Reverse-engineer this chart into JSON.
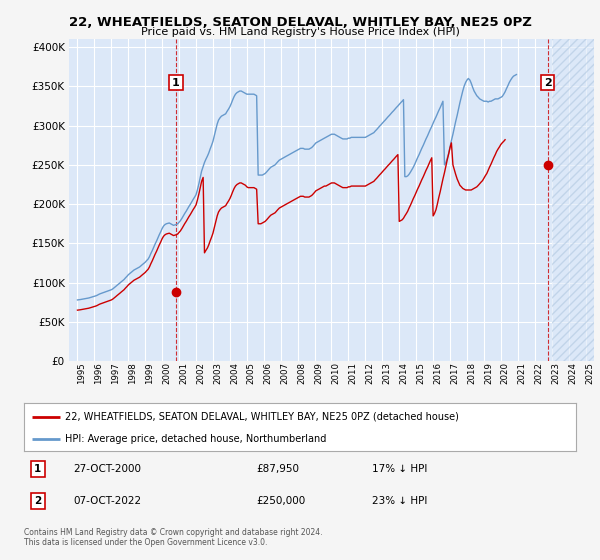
{
  "title": "22, WHEATFIELDS, SEATON DELAVAL, WHITLEY BAY, NE25 0PZ",
  "subtitle": "Price paid vs. HM Land Registry's House Price Index (HPI)",
  "legend_line1": "22, WHEATFIELDS, SEATON DELAVAL, WHITLEY BAY, NE25 0PZ (detached house)",
  "legend_line2": "HPI: Average price, detached house, Northumberland",
  "annotation1_label": "1",
  "annotation1_date": "27-OCT-2000",
  "annotation1_price": "£87,950",
  "annotation1_hpi": "17% ↓ HPI",
  "annotation2_label": "2",
  "annotation2_date": "07-OCT-2022",
  "annotation2_price": "£250,000",
  "annotation2_hpi": "23% ↓ HPI",
  "footnote": "Contains HM Land Registry data © Crown copyright and database right 2024.\nThis data is licensed under the Open Government Licence v3.0.",
  "background_color": "#f5f5f5",
  "plot_bg_color": "#dce8f8",
  "red_color": "#cc0000",
  "blue_color": "#6699cc",
  "hatch_color": "#c8d8ee",
  "grid_color": "#ffffff",
  "ylim": [
    0,
    410000
  ],
  "yticks": [
    0,
    50000,
    100000,
    150000,
    200000,
    250000,
    300000,
    350000,
    400000
  ],
  "sale1_year": 2000.82,
  "sale1_price": 87950,
  "sale2_year": 2022.77,
  "sale2_price": 250000,
  "hatch_start": 2023.0,
  "xlim_left": 1994.5,
  "xlim_right": 2025.5,
  "hpi_years": [
    1995.0,
    1995.08,
    1995.17,
    1995.25,
    1995.33,
    1995.42,
    1995.5,
    1995.58,
    1995.67,
    1995.75,
    1995.83,
    1995.92,
    1996.0,
    1996.08,
    1996.17,
    1996.25,
    1996.33,
    1996.42,
    1996.5,
    1996.58,
    1996.67,
    1996.75,
    1996.83,
    1996.92,
    1997.0,
    1997.08,
    1997.17,
    1997.25,
    1997.33,
    1997.42,
    1997.5,
    1997.58,
    1997.67,
    1997.75,
    1997.83,
    1997.92,
    1998.0,
    1998.08,
    1998.17,
    1998.25,
    1998.33,
    1998.42,
    1998.5,
    1998.58,
    1998.67,
    1998.75,
    1998.83,
    1998.92,
    1999.0,
    1999.08,
    1999.17,
    1999.25,
    1999.33,
    1999.42,
    1999.5,
    1999.58,
    1999.67,
    1999.75,
    1999.83,
    1999.92,
    2000.0,
    2000.08,
    2000.17,
    2000.25,
    2000.33,
    2000.42,
    2000.5,
    2000.58,
    2000.67,
    2000.75,
    2000.83,
    2000.92,
    2001.0,
    2001.08,
    2001.17,
    2001.25,
    2001.33,
    2001.42,
    2001.5,
    2001.58,
    2001.67,
    2001.75,
    2001.83,
    2001.92,
    2002.0,
    2002.08,
    2002.17,
    2002.25,
    2002.33,
    2002.42,
    2002.5,
    2002.58,
    2002.67,
    2002.75,
    2002.83,
    2002.92,
    2003.0,
    2003.08,
    2003.17,
    2003.25,
    2003.33,
    2003.42,
    2003.5,
    2003.58,
    2003.67,
    2003.75,
    2003.83,
    2003.92,
    2004.0,
    2004.08,
    2004.17,
    2004.25,
    2004.33,
    2004.42,
    2004.5,
    2004.58,
    2004.67,
    2004.75,
    2004.83,
    2004.92,
    2005.0,
    2005.08,
    2005.17,
    2005.25,
    2005.33,
    2005.42,
    2005.5,
    2005.58,
    2005.67,
    2005.75,
    2005.83,
    2005.92,
    2006.0,
    2006.08,
    2006.17,
    2006.25,
    2006.33,
    2006.42,
    2006.5,
    2006.58,
    2006.67,
    2006.75,
    2006.83,
    2006.92,
    2007.0,
    2007.08,
    2007.17,
    2007.25,
    2007.33,
    2007.42,
    2007.5,
    2007.58,
    2007.67,
    2007.75,
    2007.83,
    2007.92,
    2008.0,
    2008.08,
    2008.17,
    2008.25,
    2008.33,
    2008.42,
    2008.5,
    2008.58,
    2008.67,
    2008.75,
    2008.83,
    2008.92,
    2009.0,
    2009.08,
    2009.17,
    2009.25,
    2009.33,
    2009.42,
    2009.5,
    2009.58,
    2009.67,
    2009.75,
    2009.83,
    2009.92,
    2010.0,
    2010.08,
    2010.17,
    2010.25,
    2010.33,
    2010.42,
    2010.5,
    2010.58,
    2010.67,
    2010.75,
    2010.83,
    2010.92,
    2011.0,
    2011.08,
    2011.17,
    2011.25,
    2011.33,
    2011.42,
    2011.5,
    2011.58,
    2011.67,
    2011.75,
    2011.83,
    2011.92,
    2012.0,
    2012.08,
    2012.17,
    2012.25,
    2012.33,
    2012.42,
    2012.5,
    2012.58,
    2012.67,
    2012.75,
    2012.83,
    2012.92,
    2013.0,
    2013.08,
    2013.17,
    2013.25,
    2013.33,
    2013.42,
    2013.5,
    2013.58,
    2013.67,
    2013.75,
    2013.83,
    2013.92,
    2014.0,
    2014.08,
    2014.17,
    2014.25,
    2014.33,
    2014.42,
    2014.5,
    2014.58,
    2014.67,
    2014.75,
    2014.83,
    2014.92,
    2015.0,
    2015.08,
    2015.17,
    2015.25,
    2015.33,
    2015.42,
    2015.5,
    2015.58,
    2015.67,
    2015.75,
    2015.83,
    2015.92,
    2016.0,
    2016.08,
    2016.17,
    2016.25,
    2016.33,
    2016.42,
    2016.5,
    2016.58,
    2016.67,
    2016.75,
    2016.83,
    2016.92,
    2017.0,
    2017.08,
    2017.17,
    2017.25,
    2017.33,
    2017.42,
    2017.5,
    2017.58,
    2017.67,
    2017.75,
    2017.83,
    2017.92,
    2018.0,
    2018.08,
    2018.17,
    2018.25,
    2018.33,
    2018.42,
    2018.5,
    2018.58,
    2018.67,
    2018.75,
    2018.83,
    2018.92,
    2019.0,
    2019.08,
    2019.17,
    2019.25,
    2019.33,
    2019.42,
    2019.5,
    2019.58,
    2019.67,
    2019.75,
    2019.83,
    2019.92,
    2020.0,
    2020.08,
    2020.17,
    2020.25,
    2020.33,
    2020.42,
    2020.5,
    2020.58,
    2020.67,
    2020.75,
    2020.83,
    2020.92,
    2021.0,
    2021.08,
    2021.17,
    2021.25,
    2021.33,
    2021.42,
    2021.5,
    2021.58,
    2021.67,
    2021.75,
    2021.83,
    2021.92,
    2022.0,
    2022.08,
    2022.17,
    2022.25,
    2022.33,
    2022.42,
    2022.5,
    2022.58,
    2022.67,
    2022.75,
    2022.83,
    2022.92,
    2023.0,
    2023.08,
    2023.17,
    2023.25,
    2023.33,
    2023.42,
    2023.5,
    2023.58,
    2023.67,
    2023.75,
    2023.83,
    2023.92,
    2024.0,
    2024.08,
    2024.17,
    2024.25
  ],
  "hpi_values": [
    78000,
    78200,
    78500,
    78800,
    79100,
    79400,
    79700,
    80100,
    80500,
    81000,
    81500,
    82000,
    82500,
    83200,
    84000,
    85000,
    85800,
    86500,
    87200,
    87800,
    88300,
    89000,
    89800,
    90500,
    91000,
    92000,
    93500,
    95000,
    96500,
    98000,
    99500,
    101000,
    102500,
    104000,
    106000,
    108000,
    110000,
    111500,
    113000,
    114500,
    116000,
    117000,
    118000,
    119000,
    120000,
    121500,
    123000,
    124500,
    126000,
    128000,
    130000,
    133000,
    137000,
    141000,
    145000,
    149000,
    153000,
    157000,
    161000,
    165000,
    169000,
    172000,
    174000,
    175000,
    175500,
    176000,
    175000,
    174000,
    173000,
    173500,
    174000,
    175000,
    177000,
    179000,
    182000,
    185000,
    188000,
    191000,
    194000,
    197000,
    200000,
    203000,
    206000,
    209000,
    212000,
    218000,
    226000,
    234000,
    242000,
    248000,
    253000,
    257000,
    261000,
    265000,
    270000,
    275000,
    280000,
    287000,
    295000,
    302000,
    307000,
    310000,
    312000,
    313000,
    314000,
    315000,
    318000,
    321000,
    324000,
    328000,
    333000,
    337000,
    340000,
    342000,
    343000,
    344000,
    344000,
    343000,
    342000,
    341000,
    340000,
    340000,
    340000,
    340000,
    340000,
    340000,
    339000,
    338000,
    237000,
    237000,
    237000,
    237000,
    238000,
    239000,
    241000,
    243000,
    245000,
    247000,
    248000,
    249000,
    250000,
    252000,
    254000,
    256000,
    257000,
    258000,
    259000,
    260000,
    261000,
    262000,
    263000,
    264000,
    265000,
    266000,
    267000,
    268000,
    269000,
    270000,
    271000,
    271000,
    271000,
    270000,
    270000,
    270000,
    270000,
    271000,
    272000,
    274000,
    276000,
    278000,
    279000,
    280000,
    281000,
    282000,
    283000,
    284000,
    285000,
    286000,
    287000,
    288000,
    289000,
    289000,
    289000,
    288000,
    287000,
    286000,
    285000,
    284000,
    283000,
    283000,
    283000,
    283000,
    284000,
    284000,
    285000,
    285000,
    285000,
    285000,
    285000,
    285000,
    285000,
    285000,
    285000,
    285000,
    285000,
    286000,
    287000,
    288000,
    289000,
    290000,
    291000,
    293000,
    295000,
    297000,
    299000,
    301000,
    303000,
    305000,
    307000,
    309000,
    311000,
    313000,
    315000,
    317000,
    319000,
    321000,
    323000,
    325000,
    327000,
    329000,
    331000,
    333000,
    235000,
    235000,
    236000,
    238000,
    241000,
    244000,
    247000,
    251000,
    255000,
    259000,
    263000,
    267000,
    271000,
    275000,
    279000,
    283000,
    287000,
    291000,
    295000,
    299000,
    303000,
    307000,
    311000,
    315000,
    319000,
    323000,
    327000,
    331000,
    250000,
    253000,
    258000,
    265000,
    273000,
    281000,
    289000,
    297000,
    305000,
    313000,
    321000,
    329000,
    337000,
    344000,
    350000,
    355000,
    358000,
    360000,
    358000,
    354000,
    349000,
    344000,
    341000,
    338000,
    336000,
    334000,
    333000,
    332000,
    331000,
    331000,
    331000,
    330000,
    331000,
    331000,
    332000,
    333000,
    334000,
    334000,
    334000,
    335000,
    336000,
    337000,
    340000,
    343000,
    347000,
    351000,
    355000,
    358000,
    361000,
    363000,
    364000,
    365000
  ],
  "red_years": [
    1995.0,
    1995.08,
    1995.17,
    1995.25,
    1995.33,
    1995.42,
    1995.5,
    1995.58,
    1995.67,
    1995.75,
    1995.83,
    1995.92,
    1996.0,
    1996.08,
    1996.17,
    1996.25,
    1996.33,
    1996.42,
    1996.5,
    1996.58,
    1996.67,
    1996.75,
    1996.83,
    1996.92,
    1997.0,
    1997.08,
    1997.17,
    1997.25,
    1997.33,
    1997.42,
    1997.5,
    1997.58,
    1997.67,
    1997.75,
    1997.83,
    1997.92,
    1998.0,
    1998.08,
    1998.17,
    1998.25,
    1998.33,
    1998.42,
    1998.5,
    1998.58,
    1998.67,
    1998.75,
    1998.83,
    1998.92,
    1999.0,
    1999.08,
    1999.17,
    1999.25,
    1999.33,
    1999.42,
    1999.5,
    1999.58,
    1999.67,
    1999.75,
    1999.83,
    1999.92,
    2000.0,
    2000.08,
    2000.17,
    2000.25,
    2000.33,
    2000.42,
    2000.5,
    2000.58,
    2000.67,
    2000.75,
    2000.83,
    2000.92,
    2001.0,
    2001.08,
    2001.17,
    2001.25,
    2001.33,
    2001.42,
    2001.5,
    2001.58,
    2001.67,
    2001.75,
    2001.83,
    2001.92,
    2002.0,
    2002.08,
    2002.17,
    2002.25,
    2002.33,
    2002.42,
    2002.5,
    2002.58,
    2002.67,
    2002.75,
    2002.83,
    2002.92,
    2003.0,
    2003.08,
    2003.17,
    2003.25,
    2003.33,
    2003.42,
    2003.5,
    2003.58,
    2003.67,
    2003.75,
    2003.83,
    2003.92,
    2004.0,
    2004.08,
    2004.17,
    2004.25,
    2004.33,
    2004.42,
    2004.5,
    2004.58,
    2004.67,
    2004.75,
    2004.83,
    2004.92,
    2005.0,
    2005.08,
    2005.17,
    2005.25,
    2005.33,
    2005.42,
    2005.5,
    2005.58,
    2005.67,
    2005.75,
    2005.83,
    2005.92,
    2006.0,
    2006.08,
    2006.17,
    2006.25,
    2006.33,
    2006.42,
    2006.5,
    2006.58,
    2006.67,
    2006.75,
    2006.83,
    2006.92,
    2007.0,
    2007.08,
    2007.17,
    2007.25,
    2007.33,
    2007.42,
    2007.5,
    2007.58,
    2007.67,
    2007.75,
    2007.83,
    2007.92,
    2008.0,
    2008.08,
    2008.17,
    2008.25,
    2008.33,
    2008.42,
    2008.5,
    2008.58,
    2008.67,
    2008.75,
    2008.83,
    2008.92,
    2009.0,
    2009.08,
    2009.17,
    2009.25,
    2009.33,
    2009.42,
    2009.5,
    2009.58,
    2009.67,
    2009.75,
    2009.83,
    2009.92,
    2010.0,
    2010.08,
    2010.17,
    2010.25,
    2010.33,
    2010.42,
    2010.5,
    2010.58,
    2010.67,
    2010.75,
    2010.83,
    2010.92,
    2011.0,
    2011.08,
    2011.17,
    2011.25,
    2011.33,
    2011.42,
    2011.5,
    2011.58,
    2011.67,
    2011.75,
    2011.83,
    2011.92,
    2012.0,
    2012.08,
    2012.17,
    2012.25,
    2012.33,
    2012.42,
    2012.5,
    2012.58,
    2012.67,
    2012.75,
    2012.83,
    2012.92,
    2013.0,
    2013.08,
    2013.17,
    2013.25,
    2013.33,
    2013.42,
    2013.5,
    2013.58,
    2013.67,
    2013.75,
    2013.83,
    2013.92,
    2014.0,
    2014.08,
    2014.17,
    2014.25,
    2014.33,
    2014.42,
    2014.5,
    2014.58,
    2014.67,
    2014.75,
    2014.83,
    2014.92,
    2015.0,
    2015.08,
    2015.17,
    2015.25,
    2015.33,
    2015.42,
    2015.5,
    2015.58,
    2015.67,
    2015.75,
    2015.83,
    2015.92,
    2016.0,
    2016.08,
    2016.17,
    2016.25,
    2016.33,
    2016.42,
    2016.5,
    2016.58,
    2016.67,
    2016.75,
    2016.83,
    2016.92,
    2017.0,
    2017.08,
    2017.17,
    2017.25,
    2017.33,
    2017.42,
    2017.5,
    2017.58,
    2017.67,
    2017.75,
    2017.83,
    2017.92,
    2018.0,
    2018.08,
    2018.17,
    2018.25,
    2018.33,
    2018.42,
    2018.5,
    2018.58,
    2018.67,
    2018.75,
    2018.83,
    2018.92,
    2019.0,
    2019.08,
    2019.17,
    2019.25,
    2019.33,
    2019.42,
    2019.5,
    2019.58,
    2019.67,
    2019.75,
    2019.83,
    2019.92,
    2020.0,
    2020.08,
    2020.17,
    2020.25,
    2020.33,
    2020.42,
    2020.5,
    2020.58,
    2020.67,
    2020.75,
    2020.83,
    2020.92,
    2021.0,
    2021.08,
    2021.17,
    2021.25,
    2021.33,
    2021.42,
    2021.5,
    2021.58,
    2021.67,
    2021.75,
    2021.83,
    2021.92,
    2022.0,
    2022.08,
    2022.17,
    2022.25,
    2022.33,
    2022.42,
    2022.5,
    2022.58,
    2022.67,
    2022.75,
    2022.83,
    2022.92,
    2023.0,
    2023.08,
    2023.17,
    2023.25,
    2023.33,
    2023.42,
    2023.5,
    2023.58,
    2023.67,
    2023.75,
    2023.83,
    2023.92,
    2024.0,
    2024.08,
    2024.17,
    2024.25
  ],
  "red_values": [
    65000,
    65200,
    65500,
    65800,
    66100,
    66400,
    66700,
    67100,
    67500,
    68000,
    68500,
    69000,
    69500,
    70200,
    71000,
    72000,
    72800,
    73500,
    74200,
    74800,
    75300,
    76000,
    76800,
    77500,
    78000,
    79000,
    80500,
    82000,
    83500,
    85000,
    86500,
    88000,
    89500,
    91000,
    93000,
    95000,
    97000,
    98500,
    100000,
    101500,
    103000,
    104000,
    105000,
    106000,
    107000,
    108500,
    110000,
    111500,
    113000,
    115000,
    117000,
    120000,
    124000,
    128000,
    132000,
    136000,
    140000,
    144000,
    148000,
    152000,
    156000,
    159000,
    161000,
    162000,
    162500,
    163000,
    162000,
    161000,
    160000,
    160500,
    161000,
    162000,
    164000,
    166000,
    169000,
    172000,
    175000,
    178000,
    181000,
    184000,
    187000,
    190000,
    193000,
    196000,
    199000,
    205000,
    213000,
    221000,
    229000,
    234000,
    138000,
    141000,
    144000,
    148000,
    153000,
    158000,
    163000,
    170000,
    178000,
    185000,
    190000,
    193000,
    195000,
    196000,
    197000,
    198000,
    201000,
    204000,
    207000,
    211000,
    216000,
    220000,
    223000,
    225000,
    226000,
    227000,
    227000,
    226000,
    225000,
    224000,
    222000,
    221000,
    221000,
    221000,
    221000,
    221000,
    220000,
    219000,
    175000,
    175000,
    175000,
    176000,
    177000,
    178000,
    180000,
    182000,
    184000,
    186000,
    187000,
    188000,
    189000,
    191000,
    193000,
    195000,
    196000,
    197000,
    198000,
    199000,
    200000,
    201000,
    202000,
    203000,
    204000,
    205000,
    206000,
    207000,
    208000,
    209000,
    210000,
    210000,
    210000,
    209000,
    209000,
    209000,
    209000,
    210000,
    211000,
    213000,
    215000,
    217000,
    218000,
    219000,
    220000,
    221000,
    222000,
    223000,
    223000,
    224000,
    225000,
    226000,
    227000,
    227000,
    227000,
    226000,
    225000,
    224000,
    223000,
    222000,
    221000,
    221000,
    221000,
    221000,
    222000,
    222000,
    223000,
    223000,
    223000,
    223000,
    223000,
    223000,
    223000,
    223000,
    223000,
    223000,
    223000,
    224000,
    225000,
    226000,
    227000,
    228000,
    229000,
    231000,
    233000,
    235000,
    237000,
    239000,
    241000,
    243000,
    245000,
    247000,
    249000,
    251000,
    253000,
    255000,
    257000,
    259000,
    261000,
    263000,
    178000,
    179000,
    180000,
    182000,
    185000,
    188000,
    191000,
    195000,
    199000,
    203000,
    207000,
    211000,
    215000,
    219000,
    223000,
    227000,
    231000,
    235000,
    239000,
    243000,
    247000,
    251000,
    255000,
    259000,
    185000,
    188000,
    193000,
    200000,
    208000,
    216000,
    224000,
    232000,
    240000,
    248000,
    256000,
    264000,
    272000,
    278000,
    250000,
    244000,
    238000,
    232000,
    228000,
    224000,
    222000,
    220000,
    219000,
    218000,
    218000,
    218000,
    218000,
    218000,
    219000,
    220000,
    221000,
    222000,
    224000,
    226000,
    228000,
    230000,
    233000,
    236000,
    239000,
    243000,
    247000,
    251000,
    255000,
    259000,
    263000,
    267000,
    270000,
    273000,
    276000,
    278000,
    280000,
    282000
  ]
}
